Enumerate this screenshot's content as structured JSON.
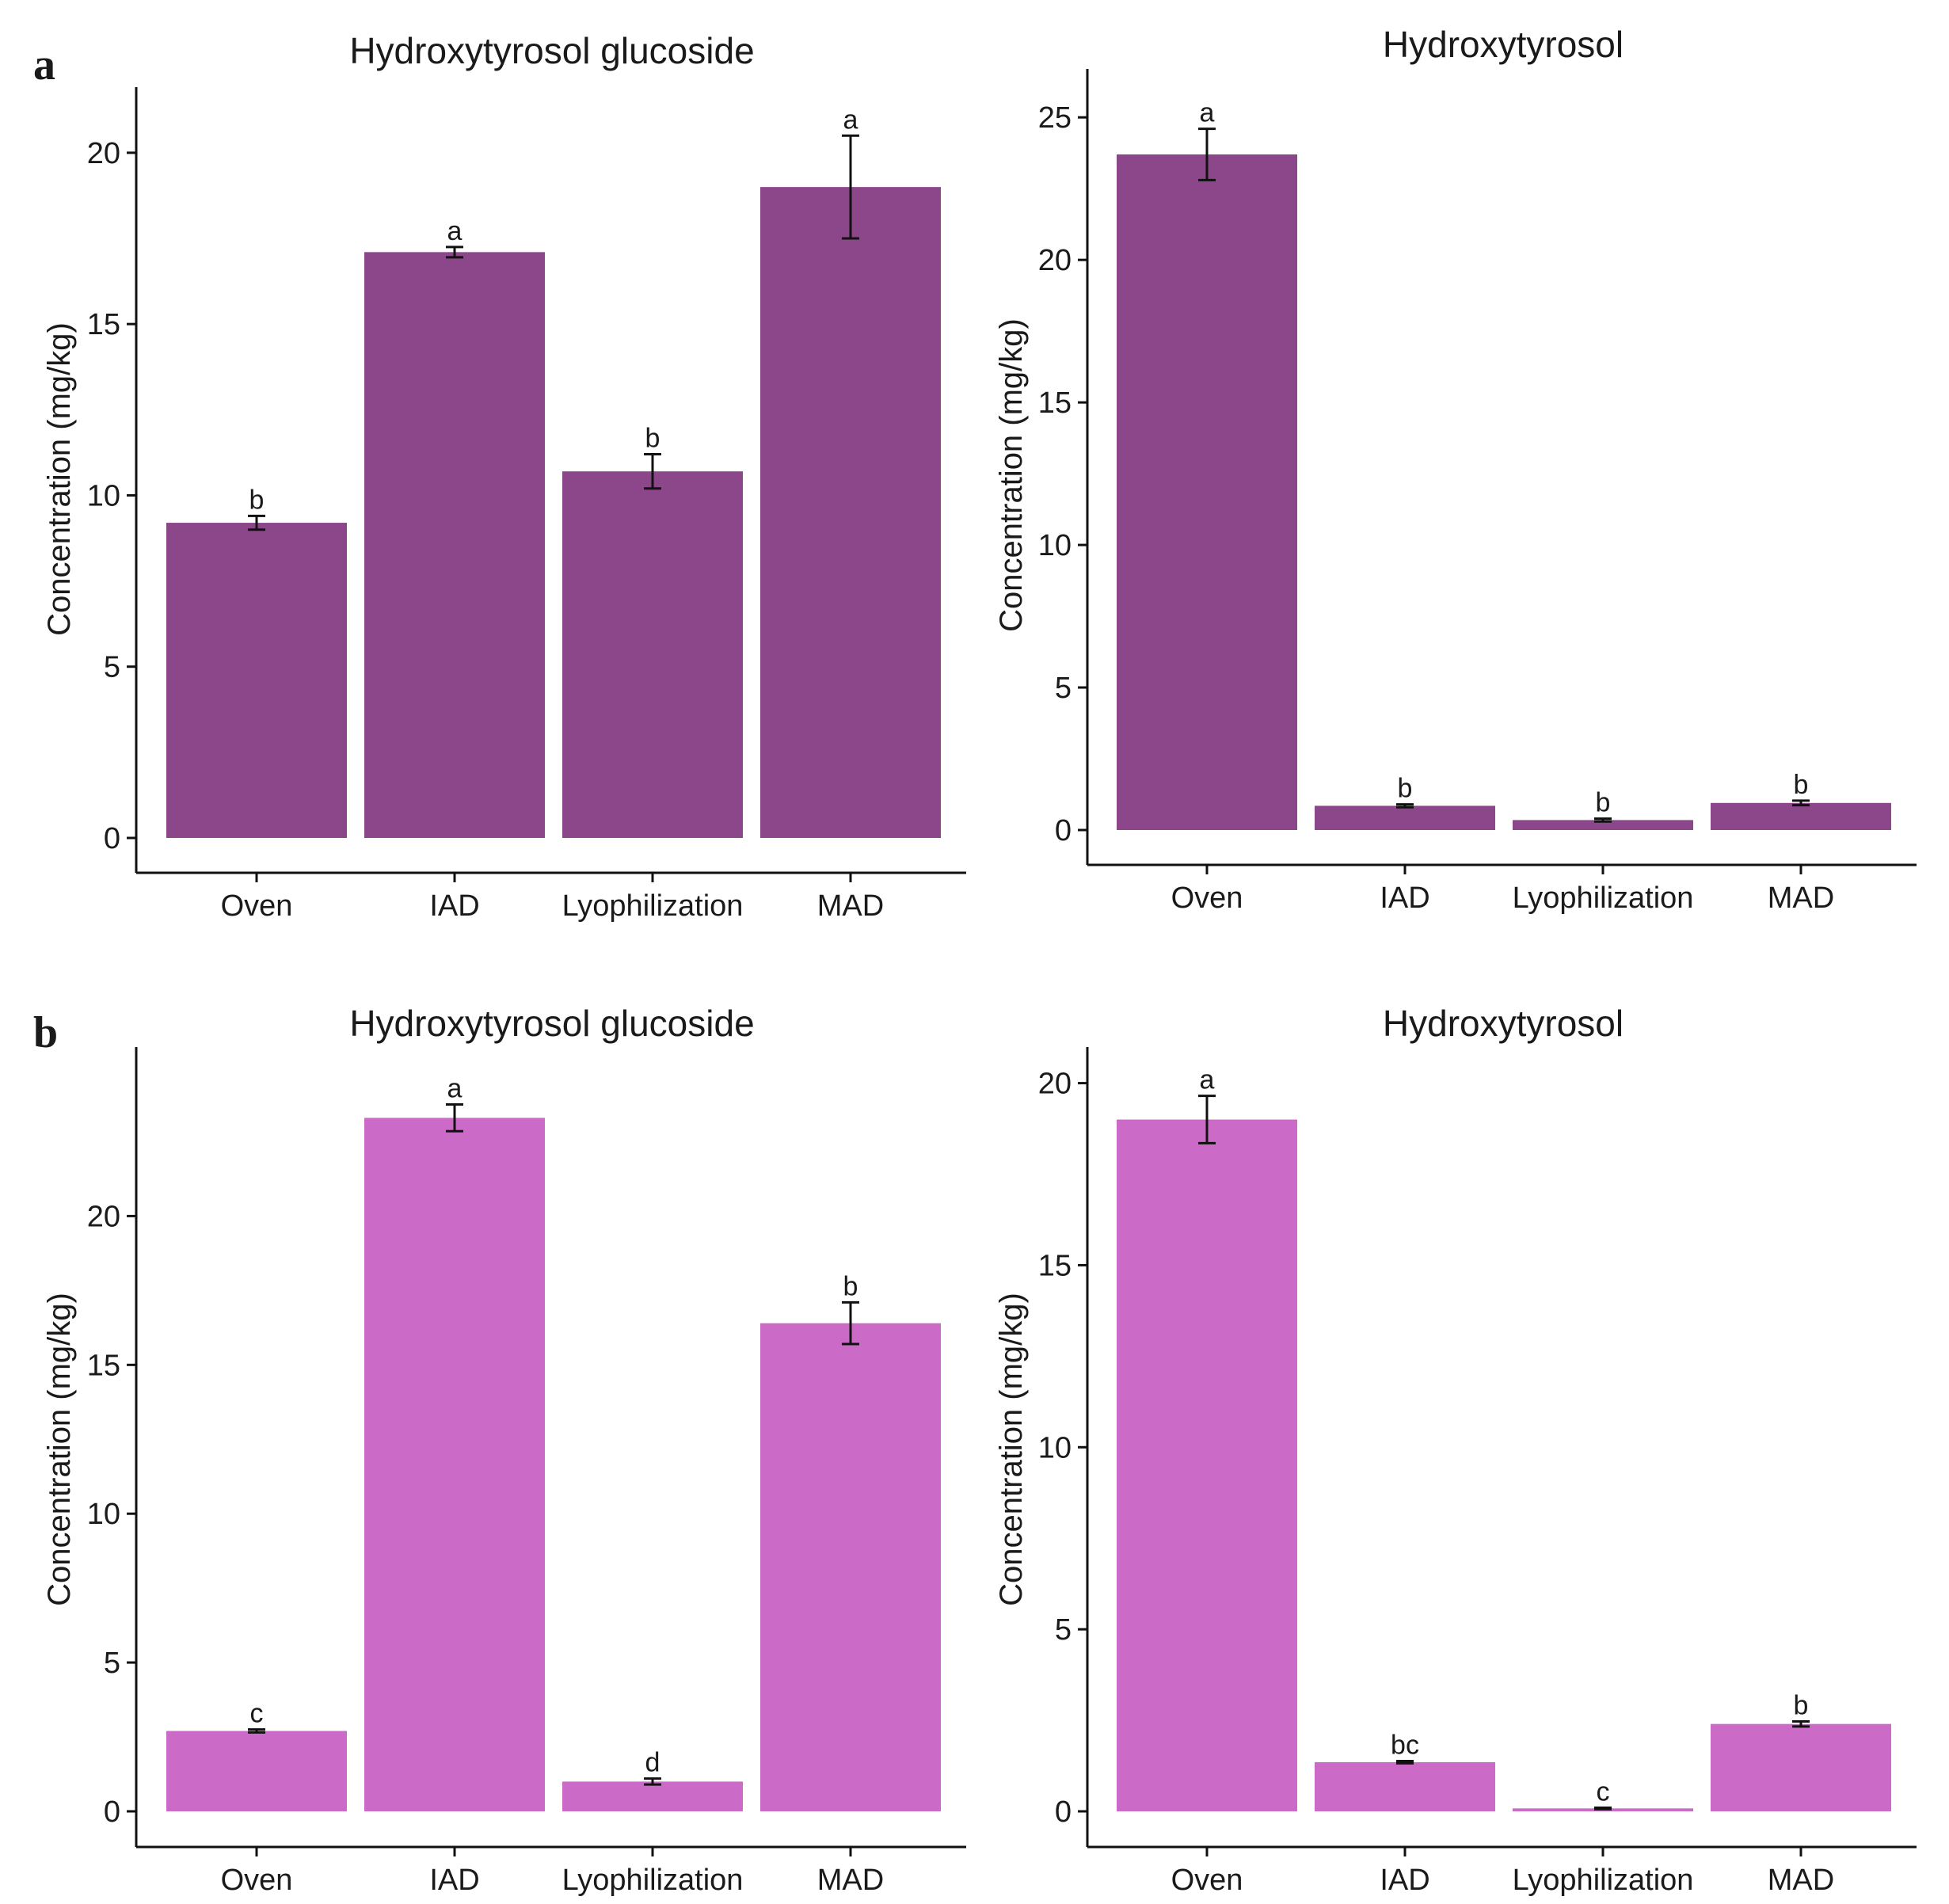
{
  "panels": [
    {
      "letter": "a"
    },
    {
      "letter": "b"
    }
  ],
  "chart_data": [
    {
      "type": "bar",
      "panel": "a",
      "title": "Hydroxytyrosol glucoside",
      "xlabel": "",
      "ylabel": "Concentration (mg/kg)",
      "ylim": [
        0,
        21.5
      ],
      "yticks": [
        0,
        5,
        10,
        15,
        20
      ],
      "categories": [
        "Oven",
        "IAD",
        "Lyophilization",
        "MAD"
      ],
      "values": [
        9.2,
        17.1,
        10.7,
        19.0
      ],
      "errors": [
        0.2,
        0.15,
        0.5,
        1.5
      ],
      "significance": [
        "b",
        "a",
        "b",
        "a"
      ],
      "color": "#8b4789",
      "grid": false
    },
    {
      "type": "bar",
      "panel": "a",
      "title": "Hydroxytyrosol",
      "xlabel": "",
      "ylabel": "Concentration (mg/kg)",
      "ylim": [
        0,
        26.2
      ],
      "yticks": [
        0,
        5,
        10,
        15,
        20,
        25
      ],
      "categories": [
        "Oven",
        "IAD",
        "Lyophilization",
        "MAD"
      ],
      "values": [
        23.7,
        0.85,
        0.35,
        0.95
      ],
      "errors": [
        0.9,
        0.05,
        0.05,
        0.08
      ],
      "significance": [
        "a",
        "b",
        "b",
        "b"
      ],
      "color": "#8b4789",
      "grid": false
    },
    {
      "type": "bar",
      "panel": "b",
      "title": "Hydroxytyrosol glucoside",
      "xlabel": "",
      "ylabel": "Concentration (mg/kg)",
      "ylim": [
        0,
        25.2
      ],
      "yticks": [
        0,
        5,
        10,
        15,
        20
      ],
      "categories": [
        "Oven",
        "IAD",
        "Lyophilization",
        "MAD"
      ],
      "values": [
        2.7,
        23.3,
        1.0,
        16.4
      ],
      "errors": [
        0.05,
        0.45,
        0.1,
        0.7
      ],
      "significance": [
        "c",
        "a",
        "d",
        "b"
      ],
      "color": "#cc6ac8",
      "grid": false
    },
    {
      "type": "bar",
      "panel": "b",
      "title": "Hydroxytyrosol",
      "xlabel": "",
      "ylabel": "Concentration (mg/kg)",
      "ylim": [
        0,
        20.6
      ],
      "yticks": [
        0,
        5,
        10,
        15,
        20
      ],
      "categories": [
        "Oven",
        "IAD",
        "Lyophilization",
        "MAD"
      ],
      "values": [
        19.0,
        1.35,
        0.08,
        2.4
      ],
      "errors": [
        0.65,
        0.03,
        0.02,
        0.07
      ],
      "significance": [
        "a",
        "bc",
        "c",
        "b"
      ],
      "color": "#cc6ac8",
      "grid": false
    }
  ]
}
